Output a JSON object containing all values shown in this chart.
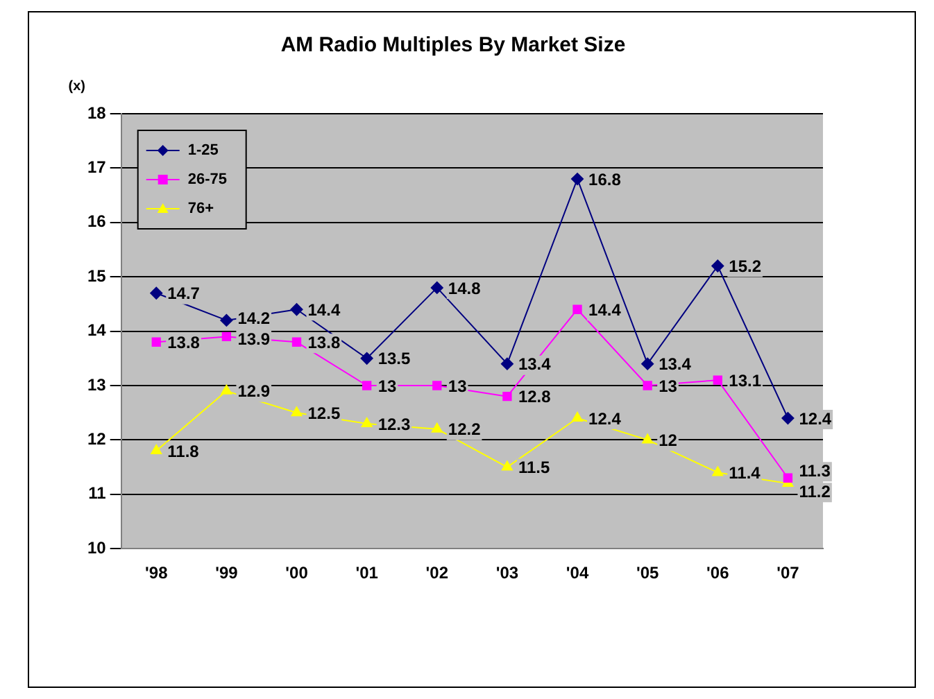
{
  "chart_data": {
    "type": "line",
    "title": "AM Radio Multiples By Market Size",
    "ylabel": "(x)",
    "categories": [
      "'98",
      "'99",
      "'00",
      "'01",
      "'02",
      "'03",
      "'04",
      "'05",
      "'06",
      "'07"
    ],
    "series": [
      {
        "name": "1-25",
        "color": "#000080",
        "marker": "diamond",
        "values": [
          14.7,
          14.2,
          14.4,
          13.5,
          14.8,
          13.4,
          16.8,
          13.4,
          15.2,
          12.4
        ]
      },
      {
        "name": "26-75",
        "color": "#ff00ff",
        "marker": "square",
        "values": [
          13.8,
          13.9,
          13.8,
          13,
          13,
          12.8,
          14.4,
          13,
          13.1,
          11.3
        ]
      },
      {
        "name": "76+",
        "color": "#ffff00",
        "marker": "triangle",
        "values": [
          11.8,
          12.9,
          12.5,
          12.3,
          12.2,
          11.5,
          12.4,
          12,
          11.4,
          11.2
        ]
      }
    ],
    "ylim": [
      10,
      18
    ],
    "yticks": [
      10,
      11,
      12,
      13,
      14,
      15,
      16,
      17,
      18
    ],
    "grid": "y",
    "legend": "top left",
    "data_labels": true
  }
}
